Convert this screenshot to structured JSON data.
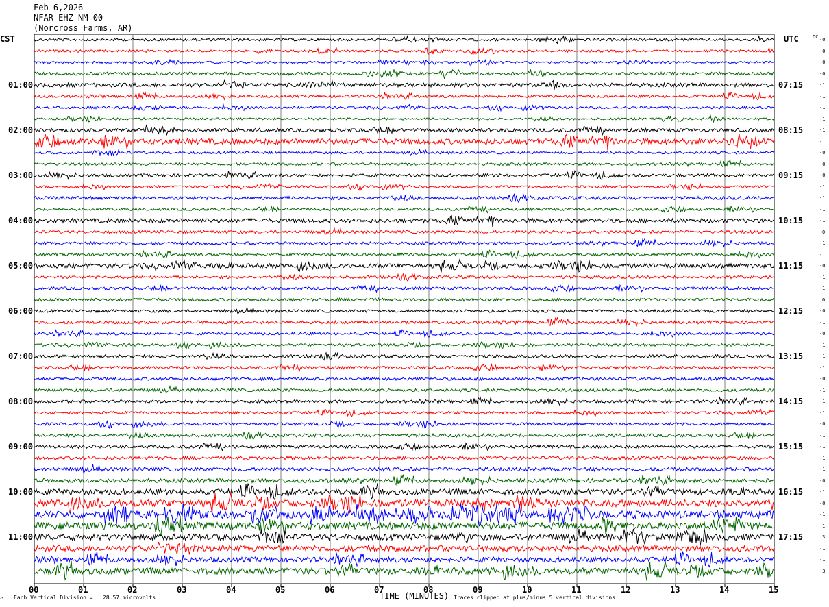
{
  "header": {
    "date": "Feb 6,2026",
    "station": "NFAR EHZ NM 00",
    "location": "(Norcross Farms, AR)"
  },
  "left_axis_label": "CST",
  "right_axis_label": "UTC",
  "dc_label": "DC",
  "footer": {
    "scale_note": "Each Vertical Division =   28.57 microvolts",
    "clip_note": "Traces clipped at plus/minus 5 vertical divisions",
    "corner_mark": "^"
  },
  "colors": {
    "trace_cycle": [
      "#000000",
      "#ff0000",
      "#0000ff",
      "#006400"
    ],
    "grid": "#808080"
  },
  "chart_data": {
    "type": "line",
    "xlabel": "TIME (MINUTES)",
    "x_ticks": [
      "00",
      "01",
      "02",
      "03",
      "04",
      "05",
      "06",
      "07",
      "08",
      "09",
      "10",
      "11",
      "12",
      "13",
      "14",
      "15"
    ],
    "xlim": [
      0,
      15
    ],
    "left_time_labels": [
      "01:00",
      "02:00",
      "03:00",
      "04:00",
      "05:00",
      "06:00",
      "07:00",
      "08:00",
      "09:00",
      "10:00",
      "11:00"
    ],
    "right_time_labels": [
      "07:15",
      "08:15",
      "09:15",
      "10:15",
      "11:15",
      "12:15",
      "13:15",
      "14:15",
      "15:15",
      "16:15",
      "17:15"
    ],
    "label_row_indices": [
      4,
      8,
      12,
      16,
      20,
      24,
      28,
      32,
      36,
      40,
      44
    ],
    "row_count": 48,
    "dc_offsets": [
      "-0",
      "-0",
      "-0",
      "-0",
      "-1",
      "-1",
      "-1",
      "-1",
      "-1",
      "-1",
      "-0",
      "-0",
      "-0",
      "-1",
      "-1",
      "-1",
      "-1",
      "0",
      "-1",
      "-1",
      "-0",
      "-1",
      "1",
      "0",
      "-0",
      "-1",
      "-0",
      "-1",
      "-1",
      "-1",
      "-0",
      "-1",
      "-1",
      "-1",
      "-0",
      "-1",
      "-1",
      "-1",
      "-1",
      "-0",
      "-1",
      "-0",
      "-1",
      "1",
      "3",
      "-1",
      "-1",
      "-3"
    ],
    "amplitude_profile": [
      1.2,
      1.1,
      1.0,
      1.4,
      1.8,
      1.2,
      1.1,
      1.0,
      1.6,
      2.6,
      1.1,
      1.2,
      1.4,
      1.1,
      1.5,
      1.2,
      1.9,
      1.3,
      1.3,
      1.3,
      2.0,
      1.3,
      1.3,
      1.4,
      1.3,
      1.4,
      1.2,
      1.2,
      1.4,
      1.3,
      1.3,
      1.3,
      1.3,
      1.2,
      1.3,
      1.5,
      1.4,
      1.5,
      1.7,
      1.8,
      2.6,
      3.2,
      3.4,
      3.2,
      2.8,
      2.6,
      2.4,
      3.0
    ]
  }
}
